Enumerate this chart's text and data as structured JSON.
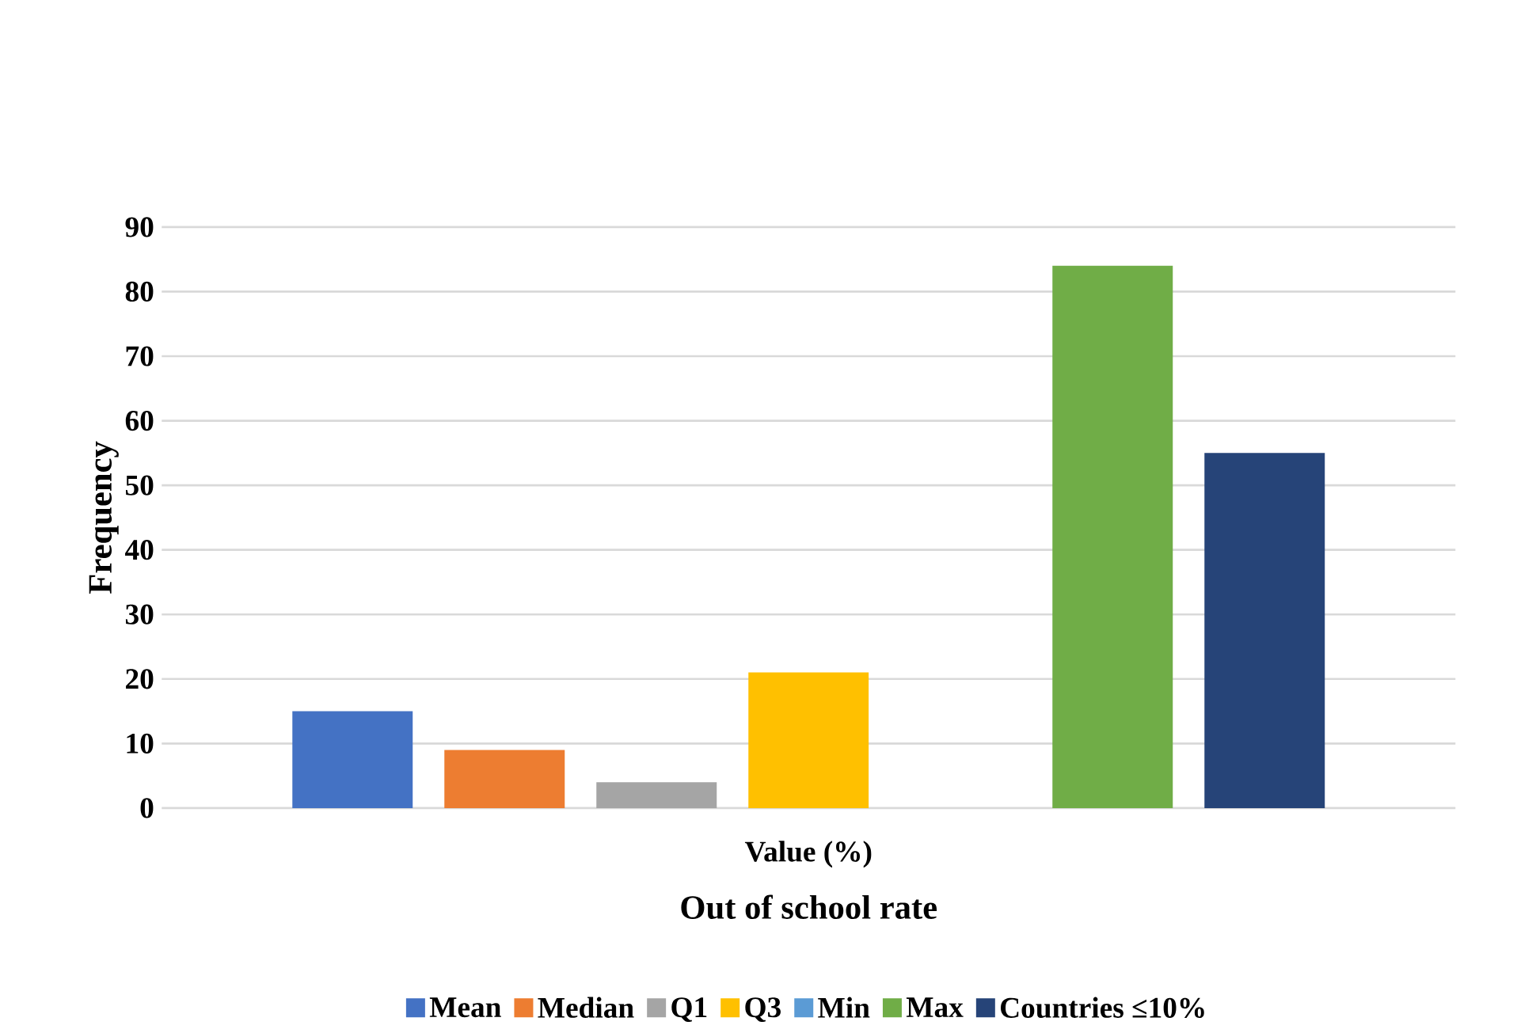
{
  "chart_data": {
    "type": "bar",
    "xlabel": "Out of school rate",
    "ylabel": "Frequency",
    "categories": [
      "Value (%)"
    ],
    "series": [
      {
        "name": "Mean",
        "color": "#4472c4",
        "values": [
          15
        ]
      },
      {
        "name": "Median",
        "color": "#ed7d31",
        "values": [
          9
        ]
      },
      {
        "name": "Q1",
        "color": "#a5a5a5",
        "values": [
          4
        ]
      },
      {
        "name": "Q3",
        "color": "#ffc000",
        "values": [
          21
        ]
      },
      {
        "name": "Min",
        "color": "#5b9bd5",
        "values": [
          0
        ]
      },
      {
        "name": "Max",
        "color": "#70ad47",
        "values": [
          84
        ]
      },
      {
        "name": "Countries ≤10%",
        "color": "#264478",
        "values": [
          55
        ]
      }
    ],
    "ylim": [
      0,
      90
    ],
    "yticks": [
      0,
      10,
      20,
      30,
      40,
      50,
      60,
      70,
      80,
      90
    ],
    "grid": "y",
    "legend": "bottom"
  }
}
